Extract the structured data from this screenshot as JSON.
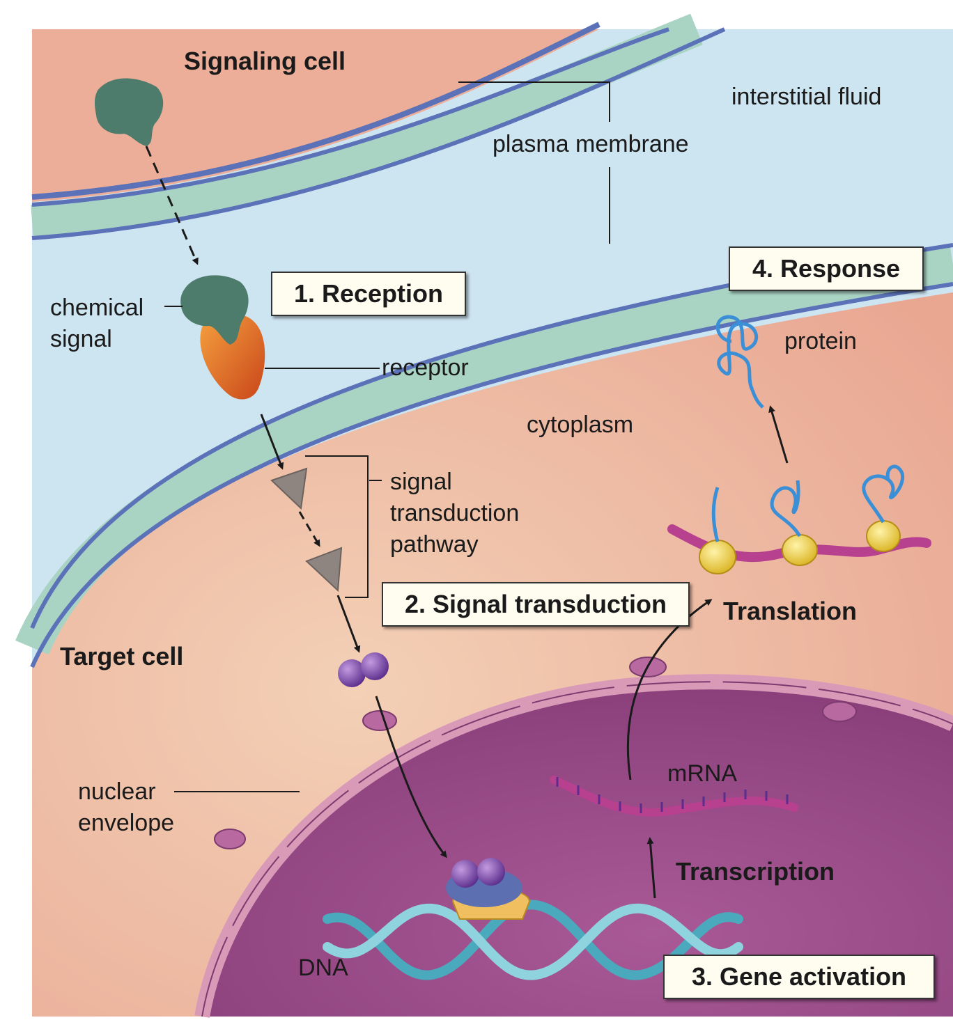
{
  "labels": {
    "signaling_cell": "Signaling cell",
    "interstitial_fluid": "interstitial fluid",
    "plasma_membrane": "plasma membrane",
    "chemical_signal_line1": "chemical",
    "chemical_signal_line2": "signal",
    "receptor": "receptor",
    "cytoplasm": "cytoplasm",
    "pathway_line1": "signal",
    "pathway_line2": "transduction",
    "pathway_line3": "pathway",
    "target_cell": "Target cell",
    "protein": "protein",
    "translation": "Translation",
    "nuclear_line1": "nuclear",
    "nuclear_line2": "envelope",
    "mrna": "mRNA",
    "transcription": "Transcription",
    "dna": "DNA"
  },
  "steps": {
    "reception": "1. Reception",
    "signal_transduction": "2. Signal transduction",
    "gene_activation": "3. Gene activation",
    "response": "4. Response"
  },
  "colors": {
    "interstitial_fluid": "#cde4f1",
    "cell_cytoplasm": "#ecae98",
    "membrane_core": "#a9d4c4",
    "membrane_edge": "#5b72b8",
    "nucleus": "#9c4f8a",
    "nuclear_envelope": "#d99ab8",
    "signal_molecule": "#4e7c6c",
    "receptor": "#e0661f",
    "relay_protein": "#8f8580",
    "transcription_factor": "#7b45a8",
    "mrna": "#b7408f",
    "ribosome": "#f2d23a",
    "protein": "#3a8fd6",
    "dna": "#4aa9bd"
  }
}
